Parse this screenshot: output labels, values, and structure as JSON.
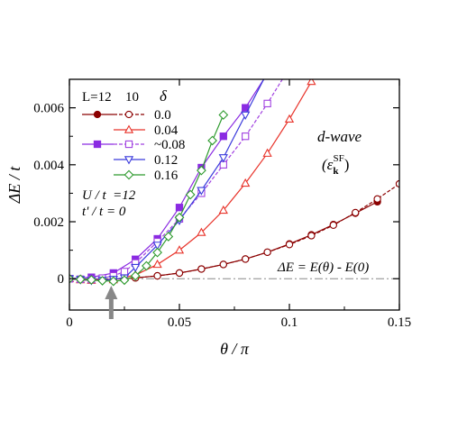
{
  "chart_data": {
    "type": "line",
    "xlabel": "θ / π",
    "ylabel": "ΔE / t",
    "xlim": [
      0,
      0.15
    ],
    "ylim": [
      -0.0011,
      0.007
    ],
    "x_ticks": [
      {
        "value": 0,
        "label": "0"
      },
      {
        "value": 0.05,
        "label": "0.05"
      },
      {
        "value": 0.1,
        "label": "0.1"
      },
      {
        "value": 0.15,
        "label": "0.15"
      }
    ],
    "y_ticks": [
      {
        "value": 0,
        "label": "0"
      },
      {
        "value": 0.002,
        "label": "0.002"
      },
      {
        "value": 0.004,
        "label": "0.004"
      },
      {
        "value": 0.006,
        "label": "0.006"
      }
    ],
    "legend": {
      "header_L": "L=12",
      "header_L2": "10",
      "header_delta": "δ",
      "labels": [
        "0.0",
        "0.04",
        "~0.08",
        "0.12",
        "0.16"
      ]
    },
    "annotations": {
      "params_1": "U / t  =12",
      "params_2": "t' / t = 0",
      "wave": "d-wave",
      "wave_sub": "(ε",
      "wave_sub_k": "k",
      "wave_sub_sf": "SF",
      "wave_sub_close": ")",
      "formula": "ΔE = E(θ) - E(0)"
    },
    "reference_line": {
      "y": 0,
      "style": "dash-dot"
    },
    "arrow_x": 0.019,
    "series": [
      {
        "legend_index": 0,
        "L": 12,
        "delta": "0.0",
        "color": "#8b0000",
        "marker": "circle",
        "filled": true,
        "dashed": false,
        "x": [
          0,
          0.01,
          0.02,
          0.03,
          0.04,
          0.05,
          0.06,
          0.07,
          0.08,
          0.09,
          0.1,
          0.11,
          0.12,
          0.13,
          0.14
        ],
        "y": [
          0,
          -3e-05,
          -2e-05,
          3e-05,
          0.0001,
          0.0002,
          0.00034,
          0.0005,
          0.00069,
          0.00093,
          0.00122,
          0.00154,
          0.0019,
          0.0023,
          0.0027
        ]
      },
      {
        "legend_index": 0,
        "L": 10,
        "delta": "0.0",
        "color": "#8b0000",
        "marker": "circle",
        "filled": false,
        "dashed": true,
        "x": [
          0,
          0.005,
          0.01,
          0.015,
          0.02,
          0.03,
          0.04,
          0.05,
          0.06,
          0.07,
          0.08,
          0.09,
          0.1,
          0.11,
          0.12,
          0.13,
          0.14,
          0.15
        ],
        "y": [
          0,
          -1e-05,
          -3e-05,
          -4e-05,
          -2e-05,
          3e-05,
          0.0001,
          0.0002,
          0.00034,
          0.0005,
          0.00069,
          0.00093,
          0.0012,
          0.00151,
          0.00188,
          0.00232,
          0.0028,
          0.00333
        ]
      },
      {
        "legend_index": 1,
        "L": 10,
        "delta": "0.04",
        "color": "#e8332a",
        "marker": "triangle-up",
        "filled": false,
        "dashed": false,
        "x": [
          0,
          0.005,
          0.01,
          0.02,
          0.03,
          0.04,
          0.05,
          0.06,
          0.07,
          0.08,
          0.09,
          0.1,
          0.11,
          0.12
        ],
        "y": [
          0,
          -4e-05,
          -6e-05,
          -4e-05,
          0.00013,
          0.0005,
          0.001,
          0.00162,
          0.0024,
          0.00335,
          0.0044,
          0.0056,
          0.00692,
          0.0084
        ]
      },
      {
        "legend_index": 2,
        "L": 12,
        "delta": "~0.08",
        "color": "#8a2be2",
        "marker": "square",
        "filled": true,
        "dashed": false,
        "x": [
          0,
          0.01,
          0.02,
          0.03,
          0.04,
          0.05,
          0.06,
          0.07,
          0.08,
          0.09
        ],
        "y": [
          0,
          5e-05,
          0.0002,
          0.00068,
          0.0014,
          0.0025,
          0.0039,
          0.005,
          0.006,
          0.0072
        ]
      },
      {
        "legend_index": 2,
        "L": 10,
        "delta": "~0.08",
        "color": "#a040e0",
        "marker": "square",
        "filled": false,
        "dashed": true,
        "x": [
          0,
          0.005,
          0.01,
          0.015,
          0.02,
          0.025,
          0.03,
          0.04,
          0.05,
          0.06,
          0.07,
          0.08,
          0.09,
          0.1
        ],
        "y": [
          0,
          -2e-05,
          -3e-05,
          2e-05,
          0.0001,
          0.00025,
          0.00055,
          0.0013,
          0.0021,
          0.003,
          0.004,
          0.005,
          0.00615,
          0.0074
        ]
      },
      {
        "legend_index": 3,
        "L": 10,
        "delta": "0.12",
        "color": "#3a3adc",
        "marker": "triangle-down",
        "filled": false,
        "dashed": false,
        "x": [
          0,
          0.005,
          0.01,
          0.015,
          0.02,
          0.025,
          0.03,
          0.04,
          0.05,
          0.06,
          0.07,
          0.08,
          0.09
        ],
        "y": [
          0,
          -3e-05,
          -6e-05,
          -5e-05,
          -2e-05,
          3e-05,
          0.0004,
          0.00118,
          0.00205,
          0.0031,
          0.00425,
          0.00575,
          0.00725
        ]
      },
      {
        "legend_index": 4,
        "L": 10,
        "delta": "0.16",
        "color": "#2e9a2e",
        "marker": "diamond",
        "filled": false,
        "dashed": false,
        "x": [
          0,
          0.005,
          0.01,
          0.015,
          0.02,
          0.025,
          0.03,
          0.035,
          0.04,
          0.045,
          0.05,
          0.055,
          0.06,
          0.065,
          0.07
        ],
        "y": [
          0,
          -2e-05,
          -4e-05,
          -7e-05,
          -9e-05,
          -5e-05,
          0.0001,
          0.00045,
          0.00092,
          0.00148,
          0.00215,
          0.00295,
          0.0038,
          0.00485,
          0.00575
        ]
      }
    ]
  }
}
